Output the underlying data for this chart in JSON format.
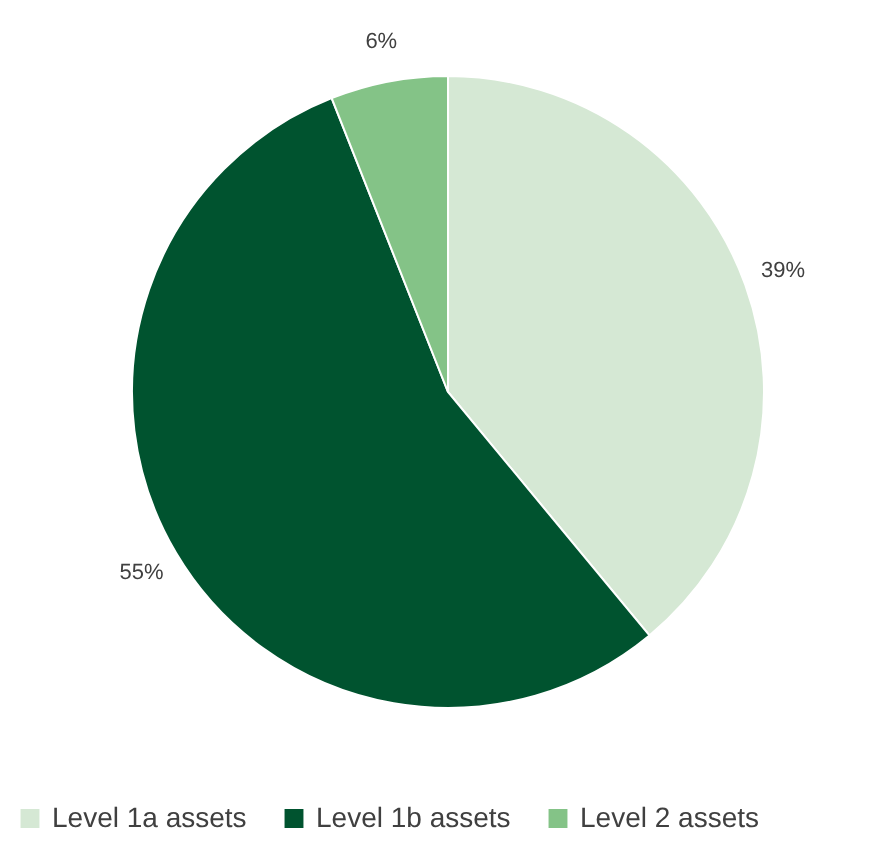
{
  "chart_data": {
    "type": "pie",
    "categories": [
      "Level 1a assets",
      "Level 1b assets",
      "Level 2 assets"
    ],
    "values": [
      39,
      55,
      6
    ],
    "colors": [
      "#d5e8d4",
      "#00532f",
      "#84c387"
    ],
    "value_labels": [
      "39%",
      "55%",
      "6%"
    ],
    "legend": "bottom"
  }
}
